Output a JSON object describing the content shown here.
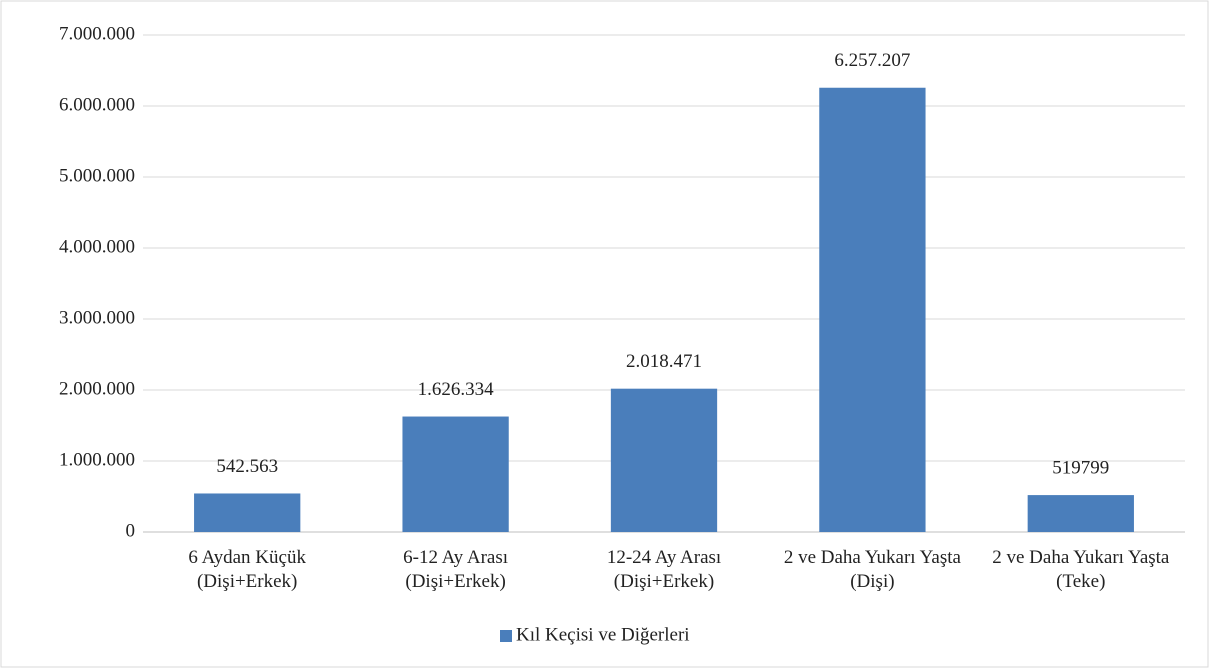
{
  "chart_data": {
    "type": "bar",
    "categories": [
      "6 Aydan Küçük (Dişi+Erkek)",
      "6-12 Ay Arası (Dişi+Erkek)",
      "12-24 Ay Arası (Dişi+Erkek)",
      "2 ve Daha Yukarı Yaşta (Dişi)",
      "2 ve Daha Yukarı Yaşta (Teke)"
    ],
    "series": [
      {
        "name": "Kıl Keçisi ve Diğerleri",
        "color": "#4a7ebb",
        "values": [
          542563,
          1626334,
          2018471,
          6257207,
          519799
        ],
        "value_labels": [
          "542.563",
          "1.626.334",
          "2.018.471",
          "6.257.207",
          "519799"
        ]
      }
    ],
    "ylim": [
      0,
      7000000
    ],
    "yticks": [
      0,
      {
        "value": 1000000,
        "label": "1.000.000"
      },
      {
        "value": 2000000,
        "label": "2.000.000"
      },
      {
        "value": 3000000,
        "label": "3.000.000"
      },
      {
        "value": 4000000,
        "label": "4.000.000"
      },
      {
        "value": 5000000,
        "label": "5.000.000"
      },
      {
        "value": 6000000,
        "label": "6.000.000"
      },
      {
        "value": 7000000,
        "label": "7.000.000"
      }
    ],
    "grid": true,
    "legend": "bottom"
  }
}
